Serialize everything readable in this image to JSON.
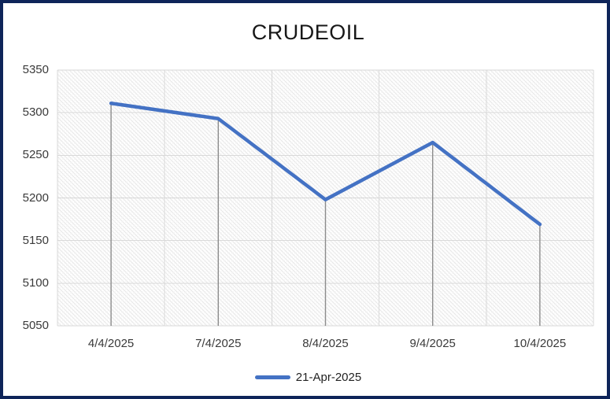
{
  "window": {
    "border_color": "#0e2459",
    "background_color": "#ffffff"
  },
  "chart_data": {
    "type": "line",
    "title": "CRUDEOIL",
    "categories": [
      "4/4/2025",
      "7/4/2025",
      "8/4/2025",
      "9/4/2025",
      "10/4/2025"
    ],
    "series": [
      {
        "name": "21-Apr-2025",
        "values": [
          5311,
          5293,
          5198,
          5265,
          5169
        ],
        "color": "#4472c4",
        "line_width": 4.5
      }
    ],
    "xlabel": "",
    "ylabel": "",
    "ylim": [
      5050,
      5350
    ],
    "yticks": [
      5050,
      5100,
      5150,
      5200,
      5250,
      5300,
      5350
    ],
    "grid": true,
    "grid_color": "#d9d9d9",
    "plot_background": "diagonal-hatch",
    "hatch_color": "#e7e7e7",
    "hatch_color_light": "#f3f3f3",
    "drop_lines": true,
    "drop_line_color": "#8c8c8c",
    "legend_position": "bottom"
  }
}
